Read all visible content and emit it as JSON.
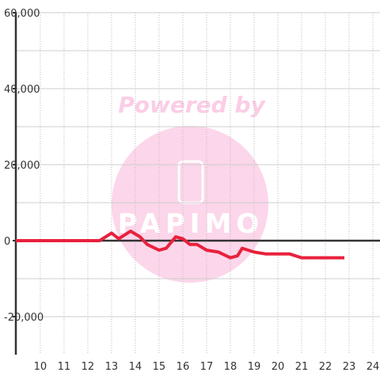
{
  "chart_data": {
    "type": "line",
    "annotations": [
      "Powered by",
      "PAPIMO"
    ],
    "x": [
      8.97,
      12.5,
      13,
      13.3,
      13.8,
      14.2,
      14.5,
      15,
      15.3,
      15.7,
      16,
      16.3,
      16.6,
      17,
      17.5,
      18,
      18.3,
      18.5,
      19,
      19.5,
      20.5,
      21,
      22.8
    ],
    "series": [
      {
        "color": "#e8213c",
        "values": [
          0,
          0,
          2000,
          500,
          2500,
          1000,
          -1000,
          -2500,
          -2000,
          1000,
          500,
          -1000,
          -1000,
          -2500,
          -3000,
          -4500,
          -4000,
          -2000,
          -3000,
          -3500,
          -3500,
          -4500,
          -4500
        ]
      }
    ],
    "xlim": [
      8.97,
      24.3
    ],
    "xticks": [
      10,
      11,
      12,
      13,
      14,
      15,
      16,
      17,
      18,
      19,
      20,
      21,
      22,
      23,
      24
    ],
    "ylim": [
      -30000,
      60000
    ],
    "yticks": [
      {
        "value": -20000,
        "label": "-20,000"
      },
      0,
      {
        "value": 20000,
        "label": "20,000"
      },
      {
        "value": 40000,
        "label": "40,000"
      },
      {
        "value": 60000,
        "label": "60,000"
      }
    ],
    "y_minor_ticks": [
      -10000,
      10000,
      30000,
      50000
    ],
    "grid": true
  }
}
